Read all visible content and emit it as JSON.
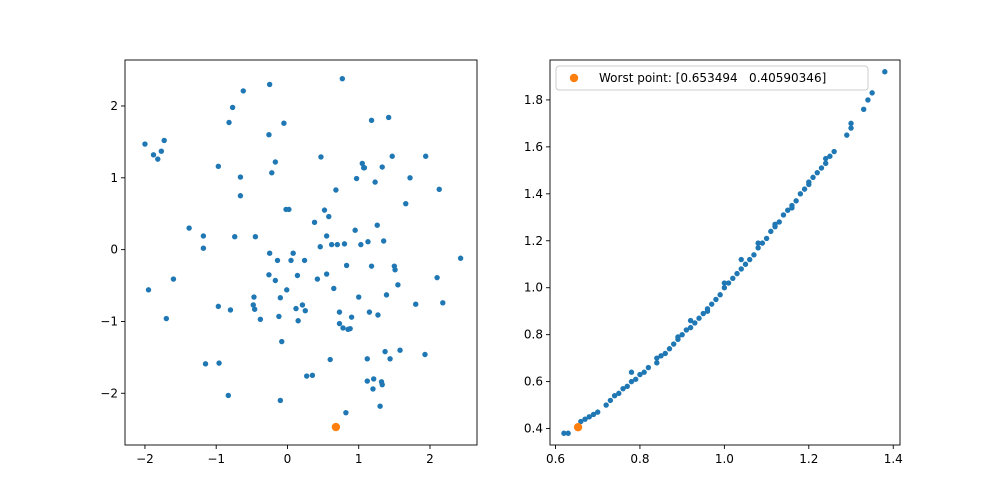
{
  "chart_data": [
    {
      "type": "scatter",
      "title": "",
      "xlabel": "",
      "ylabel": "",
      "xlim": [
        -2.28,
        2.66
      ],
      "ylim": [
        -2.72,
        2.64
      ],
      "xticks": [
        -2,
        -1,
        0,
        1,
        2
      ],
      "yticks": [
        -2,
        -1,
        0,
        1,
        2
      ],
      "x_tick_labels": [
        "−2",
        "−1",
        "0",
        "1",
        "2"
      ],
      "y_tick_labels": [
        "−2",
        "−1",
        "0",
        "1",
        "2"
      ],
      "grid": false,
      "series": [
        {
          "color": "#1f77b4",
          "points": [
            [
              -2.0,
              1.47
            ],
            [
              -1.95,
              -0.56
            ],
            [
              -1.88,
              1.32
            ],
            [
              -1.82,
              1.26
            ],
            [
              -1.77,
              1.37
            ],
            [
              -1.73,
              1.52
            ],
            [
              -1.7,
              -0.96
            ],
            [
              -1.6,
              -0.41
            ],
            [
              -1.38,
              0.3
            ],
            [
              -1.18,
              0.19
            ],
            [
              -1.18,
              0.02
            ],
            [
              -1.15,
              -1.59
            ],
            [
              -0.97,
              1.16
            ],
            [
              -0.97,
              -0.79
            ],
            [
              -0.96,
              -1.58
            ],
            [
              -0.82,
              1.77
            ],
            [
              -0.8,
              -0.84
            ],
            [
              -0.83,
              -2.03
            ],
            [
              -0.77,
              1.98
            ],
            [
              -0.74,
              0.18
            ],
            [
              -0.66,
              1.01
            ],
            [
              -0.66,
              0.75
            ],
            [
              -0.62,
              2.21
            ],
            [
              -0.48,
              -0.77
            ],
            [
              -0.47,
              -0.66
            ],
            [
              -0.45,
              0.18
            ],
            [
              -0.46,
              -0.83
            ],
            [
              -0.38,
              -0.97
            ],
            [
              -0.25,
              2.3
            ],
            [
              -0.26,
              1.6
            ],
            [
              -0.25,
              -0.05
            ],
            [
              -0.26,
              -0.35
            ],
            [
              -0.22,
              1.07
            ],
            [
              -0.17,
              1.22
            ],
            [
              -0.17,
              -0.43
            ],
            [
              -0.14,
              -0.15
            ],
            [
              -0.12,
              -0.93
            ],
            [
              -0.1,
              -0.67
            ],
            [
              -0.08,
              -1.28
            ],
            [
              -0.1,
              -2.1
            ],
            [
              -0.05,
              1.76
            ],
            [
              -0.02,
              0.56
            ],
            [
              -0.01,
              -0.56
            ],
            [
              0.05,
              -0.15
            ],
            [
              0.08,
              -0.05
            ],
            [
              0.12,
              -0.82
            ],
            [
              0.14,
              -0.36
            ],
            [
              0.15,
              -0.99
            ],
            [
              0.21,
              -0.77
            ],
            [
              0.24,
              -0.15
            ],
            [
              0.25,
              -0.85
            ],
            [
              0.27,
              -1.76
            ],
            [
              0.35,
              -1.75
            ],
            [
              0.38,
              0.38
            ],
            [
              0.42,
              -0.41
            ],
            [
              0.46,
              0.04
            ],
            [
              0.47,
              1.29
            ],
            [
              0.52,
              0.55
            ],
            [
              0.55,
              -0.34
            ],
            [
              0.55,
              0.19
            ],
            [
              0.58,
              0.46
            ],
            [
              0.6,
              -1.53
            ],
            [
              0.62,
              0.07
            ],
            [
              0.65,
              -0.54
            ],
            [
              0.68,
              0.83
            ],
            [
              0.7,
              0.07
            ],
            [
              0.73,
              -0.87
            ],
            [
              0.77,
              2.38
            ],
            [
              0.73,
              -1.03
            ],
            [
              0.78,
              -1.09
            ],
            [
              0.8,
              0.08
            ],
            [
              0.82,
              -2.27
            ],
            [
              0.83,
              -0.22
            ],
            [
              0.85,
              -1.11
            ],
            [
              0.88,
              -1.1
            ],
            [
              0.9,
              -0.94
            ],
            [
              0.95,
              0.27
            ],
            [
              0.97,
              0.99
            ],
            [
              1.0,
              -0.66
            ],
            [
              1.03,
              0.07
            ],
            [
              1.05,
              1.2
            ],
            [
              1.07,
              1.14
            ],
            [
              1.08,
              1.14
            ],
            [
              1.12,
              -1.83
            ],
            [
              1.12,
              -1.52
            ],
            [
              1.13,
              0.11
            ],
            [
              1.15,
              -0.87
            ],
            [
              1.18,
              1.8
            ],
            [
              1.18,
              -0.23
            ],
            [
              1.2,
              -1.94
            ],
            [
              1.21,
              -1.8
            ],
            [
              1.23,
              0.94
            ],
            [
              1.26,
              0.34
            ],
            [
              1.27,
              -0.91
            ],
            [
              1.3,
              -2.18
            ],
            [
              1.32,
              -1.84
            ],
            [
              1.33,
              -1.88
            ],
            [
              1.35,
              0.12
            ],
            [
              1.37,
              -1.42
            ],
            [
              1.39,
              -0.63
            ],
            [
              1.42,
              1.84
            ],
            [
              1.44,
              -1.52
            ],
            [
              1.47,
              1.3
            ],
            [
              1.5,
              -0.23
            ],
            [
              1.51,
              -0.28
            ],
            [
              1.55,
              -0.49
            ],
            [
              1.58,
              -1.4
            ],
            [
              1.66,
              0.64
            ],
            [
              1.72,
              1.0
            ],
            [
              1.8,
              -0.76
            ],
            [
              1.94,
              1.3
            ],
            [
              1.93,
              -1.46
            ],
            [
              2.1,
              -0.39
            ],
            [
              2.13,
              0.84
            ],
            [
              2.18,
              -0.74
            ],
            [
              2.43,
              -0.12
            ],
            [
              0.02,
              0.56
            ],
            [
              1.33,
              1.15
            ]
          ]
        },
        {
          "color": "#ff7f0e",
          "points": [
            [
              0.68,
              -2.47
            ]
          ]
        }
      ]
    },
    {
      "type": "scatter",
      "title": "",
      "xlabel": "",
      "ylabel": "",
      "xlim": [
        0.587,
        1.416
      ],
      "ylim": [
        0.33,
        1.97
      ],
      "xticks": [
        0.6,
        0.8,
        1.0,
        1.2,
        1.4
      ],
      "yticks": [
        0.4,
        0.6,
        0.8,
        1.0,
        1.2,
        1.4,
        1.6,
        1.8
      ],
      "x_tick_labels": [
        "0.6",
        "0.8",
        "1.0",
        "1.2",
        "1.4"
      ],
      "y_tick_labels": [
        "0.4",
        "0.6",
        "0.8",
        "1.0",
        "1.2",
        "1.4",
        "1.6",
        "1.8"
      ],
      "grid": false,
      "legend_position": "top-left",
      "legend": [
        {
          "label": "Worst point: [0.653494   0.40590346]",
          "color": "#ff7f0e"
        }
      ],
      "series": [
        {
          "color": "#1f77b4",
          "points": [
            [
              0.62,
              0.38
            ],
            [
              0.63,
              0.38
            ],
            [
              0.66,
              0.43
            ],
            [
              0.67,
              0.44
            ],
            [
              0.68,
              0.45
            ],
            [
              0.69,
              0.46
            ],
            [
              0.7,
              0.47
            ],
            [
              0.72,
              0.5
            ],
            [
              0.73,
              0.52
            ],
            [
              0.74,
              0.54
            ],
            [
              0.75,
              0.55
            ],
            [
              0.76,
              0.57
            ],
            [
              0.77,
              0.58
            ],
            [
              0.78,
              0.6
            ],
            [
              0.79,
              0.61
            ],
            [
              0.8,
              0.63
            ],
            [
              0.81,
              0.64
            ],
            [
              0.82,
              0.66
            ],
            [
              0.84,
              0.68
            ],
            [
              0.85,
              0.71
            ],
            [
              0.86,
              0.72
            ],
            [
              0.87,
              0.74
            ],
            [
              0.88,
              0.76
            ],
            [
              0.89,
              0.78
            ],
            [
              0.9,
              0.8
            ],
            [
              0.91,
              0.82
            ],
            [
              0.92,
              0.83
            ],
            [
              0.93,
              0.85
            ],
            [
              0.94,
              0.87
            ],
            [
              0.95,
              0.89
            ],
            [
              0.96,
              0.91
            ],
            [
              0.97,
              0.93
            ],
            [
              0.98,
              0.95
            ],
            [
              0.99,
              0.97
            ],
            [
              1.0,
              1.0
            ],
            [
              1.01,
              1.02
            ],
            [
              1.02,
              1.04
            ],
            [
              1.03,
              1.06
            ],
            [
              1.04,
              1.08
            ],
            [
              1.05,
              1.1
            ],
            [
              1.06,
              1.12
            ],
            [
              1.07,
              1.14
            ],
            [
              1.08,
              1.17
            ],
            [
              1.09,
              1.19
            ],
            [
              1.1,
              1.21
            ],
            [
              1.11,
              1.24
            ],
            [
              1.12,
              1.26
            ],
            [
              1.13,
              1.28
            ],
            [
              1.14,
              1.31
            ],
            [
              1.15,
              1.33
            ],
            [
              1.16,
              1.35
            ],
            [
              1.17,
              1.37
            ],
            [
              1.18,
              1.4
            ],
            [
              1.19,
              1.42
            ],
            [
              1.2,
              1.44
            ],
            [
              1.21,
              1.47
            ],
            [
              1.22,
              1.49
            ],
            [
              1.23,
              1.51
            ],
            [
              1.24,
              1.53
            ],
            [
              1.25,
              1.56
            ],
            [
              1.26,
              1.58
            ],
            [
              1.29,
              1.65
            ],
            [
              1.3,
              1.68
            ],
            [
              1.33,
              1.76
            ],
            [
              1.34,
              1.8
            ],
            [
              1.35,
              1.83
            ],
            [
              1.38,
              1.92
            ],
            [
              0.78,
              0.64
            ],
            [
              0.84,
              0.7
            ],
            [
              0.89,
              0.79
            ],
            [
              0.92,
              0.86
            ],
            [
              0.96,
              0.9
            ],
            [
              1.0,
              1.02
            ],
            [
              1.04,
              1.12
            ],
            [
              1.08,
              1.19
            ],
            [
              1.12,
              1.27
            ],
            [
              1.16,
              1.34
            ],
            [
              1.2,
              1.45
            ],
            [
              1.24,
              1.55
            ],
            [
              1.3,
              1.7
            ]
          ]
        },
        {
          "color": "#ff7f0e",
          "points": [
            [
              0.653494,
              0.40590346
            ]
          ]
        }
      ]
    }
  ]
}
